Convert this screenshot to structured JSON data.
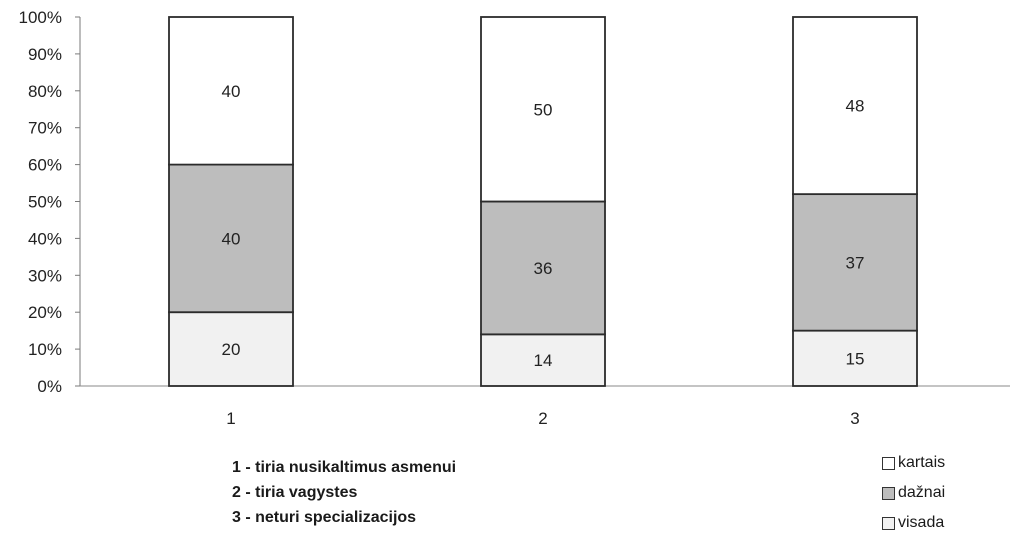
{
  "chart_data": {
    "type": "bar",
    "stacked": true,
    "percent_stacked": true,
    "categories": [
      "1",
      "2",
      "3"
    ],
    "y_ticks": [
      "0%",
      "10%",
      "20%",
      "30%",
      "40%",
      "50%",
      "60%",
      "70%",
      "80%",
      "90%",
      "100%"
    ],
    "ylim": [
      0,
      100
    ],
    "grid": false,
    "series": [
      {
        "name": "visada",
        "color": "#f1f1f1",
        "values": [
          20,
          14,
          15
        ]
      },
      {
        "name": "dažnai",
        "color": "#bdbdbd",
        "values": [
          40,
          36,
          37
        ]
      },
      {
        "name": "kartais",
        "color": "#ffffff",
        "values": [
          40,
          50,
          48
        ]
      }
    ],
    "legend_position": "bottom-right",
    "legend": [
      "kartais",
      "dažnai",
      "visada"
    ],
    "category_notes": [
      "1 - tiria nusikaltimus asmenui",
      "2 - tiria vagystes",
      "3 - neturi specializacijos"
    ]
  }
}
